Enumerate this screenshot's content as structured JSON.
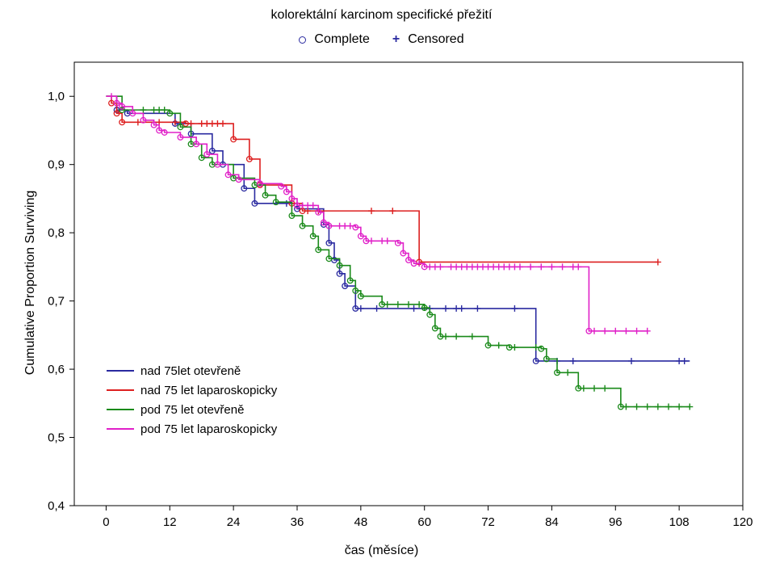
{
  "chart_data": {
    "type": "line",
    "title": "kolorektální karcinom specifické přežití",
    "markers_legend": [
      {
        "symbol": "circle",
        "label": "Complete"
      },
      {
        "symbol": "plus",
        "label": "Censored"
      }
    ],
    "xlabel": "čas (měsíce)",
    "ylabel": "Cumulative Proportion Surviving",
    "xlim": [
      -6,
      120
    ],
    "ylim": [
      0.4,
      1.05
    ],
    "xticks": [
      0,
      12,
      24,
      36,
      48,
      60,
      72,
      84,
      96,
      108,
      120
    ],
    "yticks": [
      0.4,
      0.5,
      0.6,
      0.7,
      0.8,
      0.9,
      1.0
    ],
    "xtick_labels": [
      "0",
      "12",
      "24",
      "36",
      "48",
      "60",
      "72",
      "84",
      "96",
      "108",
      "120"
    ],
    "ytick_labels": [
      "0,4",
      "0,5",
      "0,6",
      "0,7",
      "0,8",
      "0,9",
      "1,0"
    ],
    "series": [
      {
        "name": "nad 75let otevřeně",
        "color": "#2a2aa0",
        "steps": [
          [
            0,
            1.0
          ],
          [
            2,
            0.98
          ],
          [
            4,
            0.975
          ],
          [
            8,
            0.975
          ],
          [
            13,
            0.96
          ],
          [
            16,
            0.945
          ],
          [
            20,
            0.92
          ],
          [
            22,
            0.9
          ],
          [
            26,
            0.865
          ],
          [
            28,
            0.843
          ],
          [
            33,
            0.843
          ],
          [
            36,
            0.835
          ],
          [
            40,
            0.835
          ],
          [
            41,
            0.812
          ],
          [
            42,
            0.785
          ],
          [
            43,
            0.76
          ],
          [
            44,
            0.74
          ],
          [
            45,
            0.722
          ],
          [
            47,
            0.689
          ],
          [
            81,
            0.689
          ],
          [
            81,
            0.612
          ],
          [
            110,
            0.612
          ]
        ],
        "censored": [
          34,
          48,
          51,
          58,
          61,
          64,
          66,
          67,
          70,
          77,
          85,
          88,
          99,
          108,
          109
        ]
      },
      {
        "name": "nad 75 let laparoskopicky",
        "color": "#dd2020",
        "steps": [
          [
            0,
            1.0
          ],
          [
            1,
            0.99
          ],
          [
            2,
            0.975
          ],
          [
            3,
            0.962
          ],
          [
            12,
            0.962
          ],
          [
            15,
            0.96
          ],
          [
            23,
            0.96
          ],
          [
            24,
            0.937
          ],
          [
            27,
            0.908
          ],
          [
            29,
            0.87
          ],
          [
            35,
            0.843
          ],
          [
            37,
            0.832
          ],
          [
            58,
            0.832
          ],
          [
            59,
            0.757
          ],
          [
            104,
            0.757
          ]
        ],
        "censored": [
          6,
          10,
          13,
          16,
          18,
          19,
          20,
          21,
          22,
          38,
          40,
          50,
          54,
          104
        ]
      },
      {
        "name": "pod 75 let otevřeně",
        "color": "#1a8a1a",
        "steps": [
          [
            0,
            1.0
          ],
          [
            3,
            0.98
          ],
          [
            8,
            0.98
          ],
          [
            12,
            0.975
          ],
          [
            14,
            0.955
          ],
          [
            16,
            0.93
          ],
          [
            18,
            0.91
          ],
          [
            20,
            0.9
          ],
          [
            24,
            0.88
          ],
          [
            28,
            0.87
          ],
          [
            30,
            0.855
          ],
          [
            32,
            0.845
          ],
          [
            35,
            0.825
          ],
          [
            37,
            0.81
          ],
          [
            39,
            0.795
          ],
          [
            40,
            0.775
          ],
          [
            42,
            0.762
          ],
          [
            44,
            0.752
          ],
          [
            46,
            0.73
          ],
          [
            47,
            0.715
          ],
          [
            48,
            0.707
          ],
          [
            52,
            0.695
          ],
          [
            60,
            0.69
          ],
          [
            61,
            0.68
          ],
          [
            62,
            0.66
          ],
          [
            63,
            0.648
          ],
          [
            67,
            0.648
          ],
          [
            72,
            0.635
          ],
          [
            76,
            0.632
          ],
          [
            82,
            0.63
          ],
          [
            83,
            0.615
          ],
          [
            85,
            0.595
          ],
          [
            89,
            0.572
          ],
          [
            97,
            0.545
          ],
          [
            110,
            0.545
          ]
        ],
        "censored": [
          7,
          9,
          10,
          11,
          53,
          55,
          57,
          59,
          60,
          64,
          66,
          69,
          74,
          77,
          81,
          87,
          90,
          92,
          94,
          98,
          100,
          102,
          104,
          106,
          108,
          110
        ]
      },
      {
        "name": "pod 75 let laparoskopicky",
        "color": "#e020c8",
        "steps": [
          [
            0,
            1.0
          ],
          [
            2,
            0.99
          ],
          [
            3,
            0.985
          ],
          [
            5,
            0.975
          ],
          [
            7,
            0.965
          ],
          [
            9,
            0.958
          ],
          [
            10,
            0.95
          ],
          [
            11,
            0.947
          ],
          [
            14,
            0.94
          ],
          [
            17,
            0.93
          ],
          [
            19,
            0.915
          ],
          [
            21,
            0.9
          ],
          [
            23,
            0.885
          ],
          [
            25,
            0.878
          ],
          [
            29,
            0.872
          ],
          [
            33,
            0.868
          ],
          [
            34,
            0.86
          ],
          [
            35,
            0.85
          ],
          [
            36,
            0.84
          ],
          [
            40,
            0.83
          ],
          [
            41,
            0.815
          ],
          [
            42,
            0.81
          ],
          [
            47,
            0.808
          ],
          [
            48,
            0.795
          ],
          [
            49,
            0.788
          ],
          [
            55,
            0.785
          ],
          [
            56,
            0.77
          ],
          [
            57,
            0.76
          ],
          [
            58,
            0.755
          ],
          [
            60,
            0.75
          ],
          [
            90,
            0.75
          ],
          [
            91,
            0.656
          ],
          [
            102,
            0.656
          ]
        ],
        "censored": [
          1,
          37,
          38,
          39,
          44,
          45,
          46,
          50,
          52,
          53,
          59,
          61,
          62,
          63,
          65,
          66,
          67,
          68,
          69,
          70,
          71,
          72,
          73,
          74,
          75,
          76,
          77,
          78,
          80,
          82,
          84,
          86,
          88,
          89,
          92,
          94,
          96,
          98,
          100,
          102
        ]
      }
    ]
  }
}
